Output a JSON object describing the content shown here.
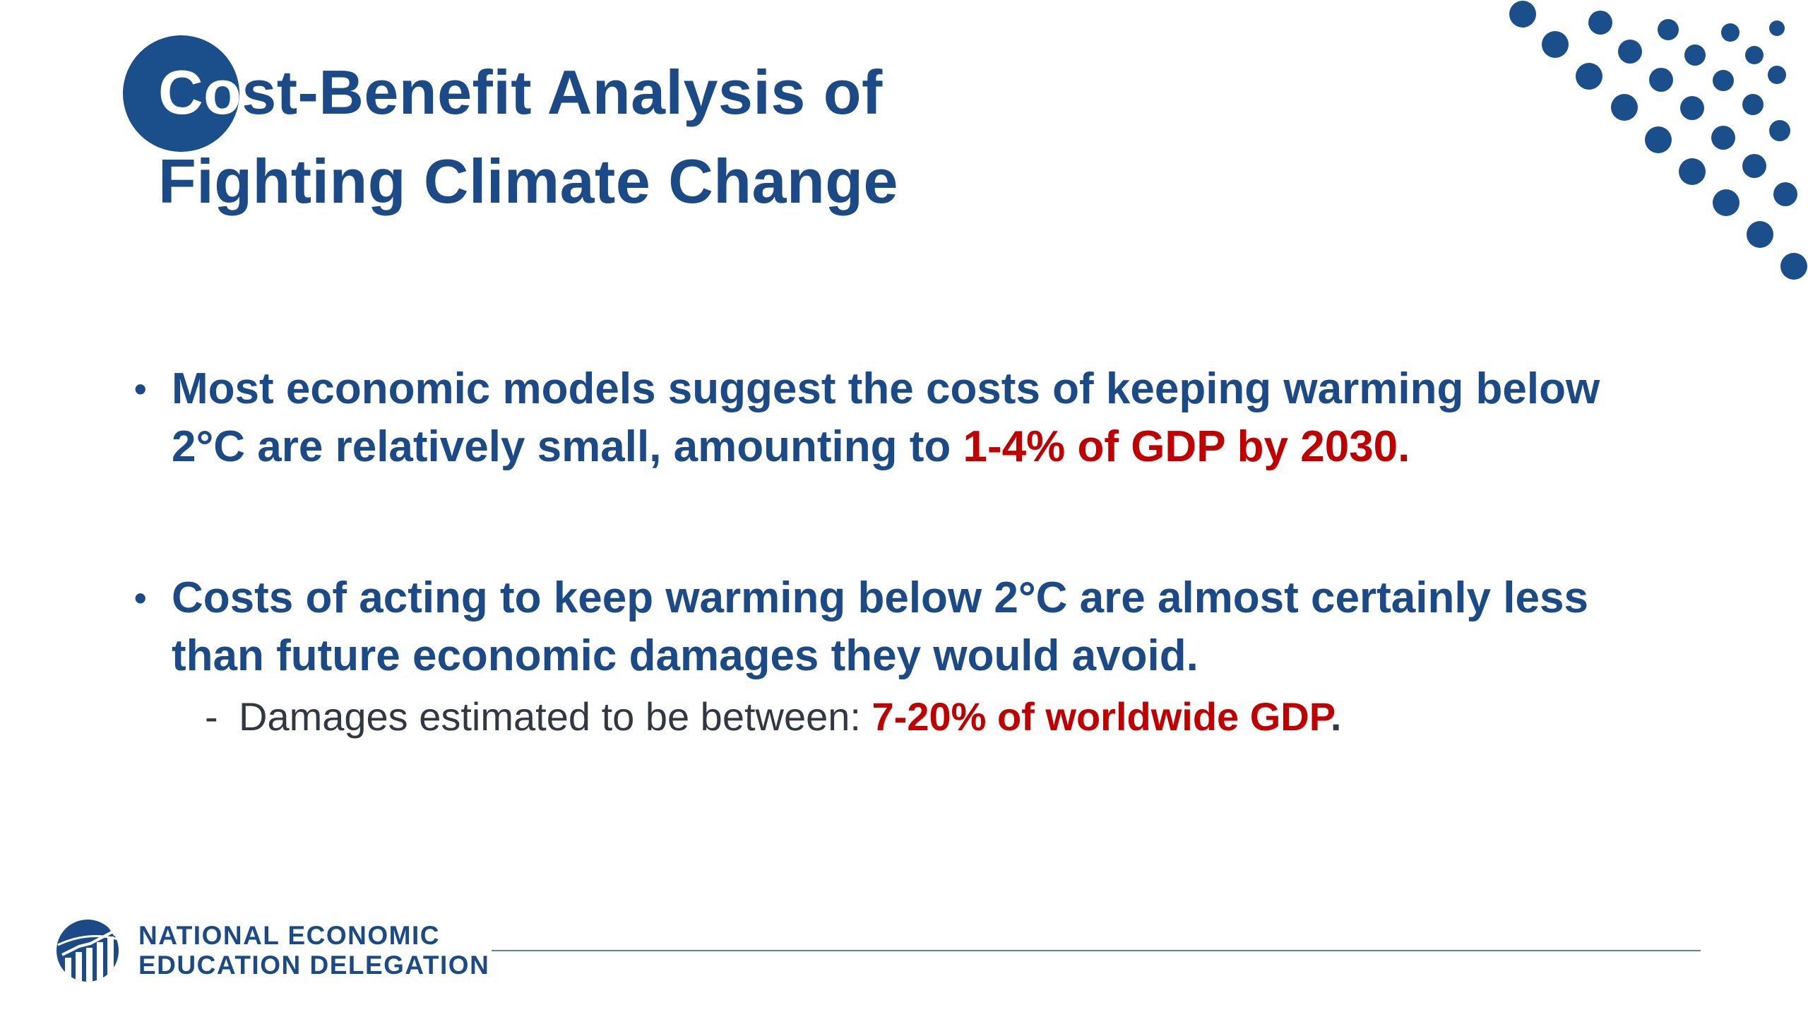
{
  "title": {
    "line1_on_circle": "Co",
    "line1_rest": "st-Benefit Analysis of",
    "line2": "Fighting Climate Change"
  },
  "bullets": [
    {
      "marker": "•",
      "line1": "Most economic models suggest the costs of keeping warming below",
      "line2_plain": "2°C are relatively small, amounting to ",
      "line2_highlight": "1-4% of GDP by 2030."
    },
    {
      "marker": "•",
      "line1": "Costs of acting to keep warming below 2°C are almost certainly less",
      "line2": "than future economic damages they would avoid.",
      "sub": {
        "marker": "-",
        "plain": "Damages estimated to be between: ",
        "highlight": "7-20% of worldwide GDP",
        "end": "."
      }
    }
  ],
  "footer": {
    "org_line1": "NATIONAL ECONOMIC",
    "org_line2": "EDUCATION DELEGATION",
    "logo_icon": "globe-bar-chart-icon"
  },
  "colors": {
    "primary_blue": "#1b4a86",
    "accent_red": "#c00000",
    "subtext": "#333840",
    "dots": "#1b4f8c"
  }
}
